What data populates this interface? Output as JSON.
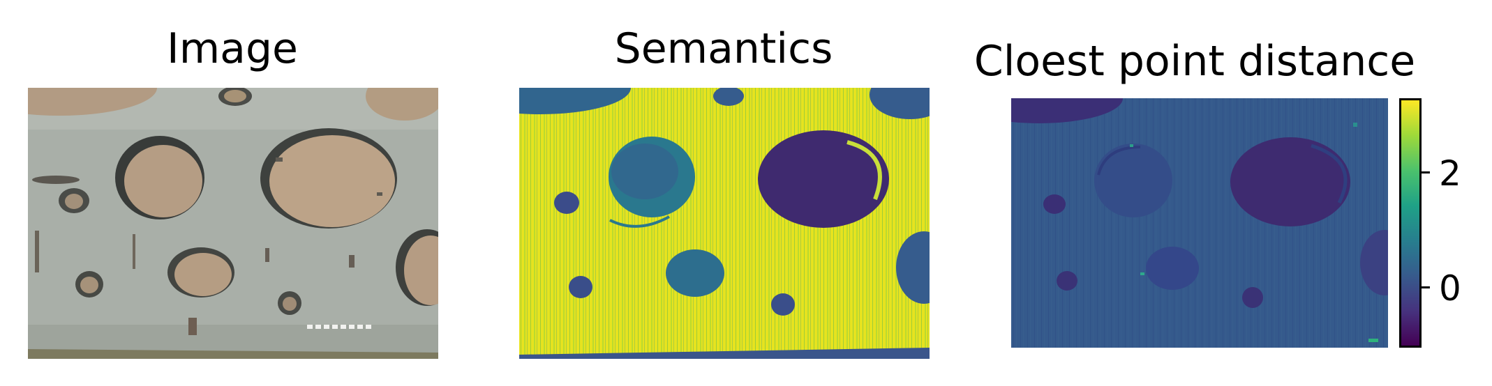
{
  "panels": [
    {
      "name": "image",
      "title": "Image"
    },
    {
      "name": "semantics",
      "title": "Semantics"
    },
    {
      "name": "distance",
      "title": "Cloest point distance"
    }
  ],
  "colorbar": {
    "colormap": "viridis",
    "ticks": [
      "2",
      "0"
    ],
    "colors": [
      "#440154",
      "#46327e",
      "#365c8d",
      "#277f8e",
      "#1fa187",
      "#4ac16d",
      "#a0da39",
      "#fde725"
    ]
  }
}
